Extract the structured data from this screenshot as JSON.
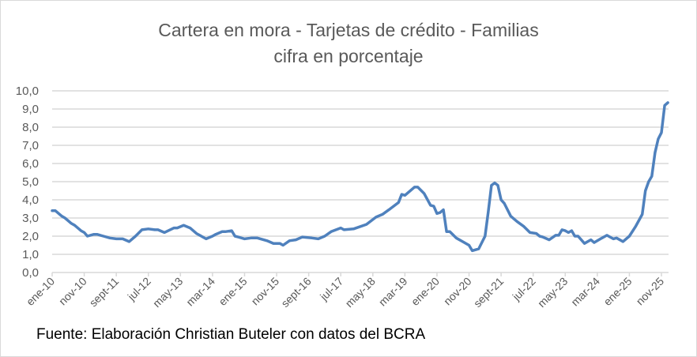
{
  "chart_data": {
    "type": "line",
    "title": "Cartera en mora - Tarjetas de crédito - Familias",
    "subtitle": "cifra en porcentaje",
    "source": "Fuente: Elaboración Christian Buteler con datos del BCRA",
    "ylim": [
      0,
      10
    ],
    "yticks": [
      "0,0",
      "1,0",
      "2,0",
      "3,0",
      "4,0",
      "5,0",
      "6,0",
      "7,0",
      "8,0",
      "9,0",
      "10,0"
    ],
    "xtick_dates": [
      "2010-01",
      "2010-11",
      "2011-09",
      "2012-07",
      "2013-05",
      "2014-03",
      "2015-01",
      "2015-11",
      "2016-09",
      "2017-07",
      "2018-05",
      "2019-03",
      "2020-01",
      "2020-11",
      "2021-09",
      "2022-07",
      "2023-05",
      "2024-03",
      "2025-01",
      "2025-11"
    ],
    "xticks": [
      "ene-10",
      "nov-10",
      "sept-11",
      "jul-12",
      "may-13",
      "mar-14",
      "ene-15",
      "nov-15",
      "sept-16",
      "jul-17",
      "may-18",
      "mar-19",
      "ene-20",
      "nov-20",
      "sept-21",
      "jul-22",
      "may-23",
      "mar-24",
      "ene-25",
      "nov-25"
    ],
    "grid": true,
    "legend": "none",
    "line_color": "#4f81bd",
    "series": [
      {
        "x": [
          "2010-01",
          "2010-02",
          "2010-04",
          "2010-05",
          "2010-07",
          "2010-08",
          "2010-10",
          "2010-11",
          "2010-12",
          "2011-02",
          "2011-03",
          "2011-05",
          "2011-07",
          "2011-09",
          "2011-11",
          "2012-01",
          "2012-03",
          "2012-05",
          "2012-07",
          "2012-09",
          "2012-10",
          "2012-12",
          "2013-03",
          "2013-04",
          "2013-06",
          "2013-08",
          "2013-10",
          "2014-01",
          "2014-03",
          "2014-04",
          "2014-06",
          "2014-07",
          "2014-09",
          "2014-10",
          "2014-11",
          "2015-01",
          "2015-03",
          "2015-05",
          "2015-08",
          "2015-10",
          "2015-12",
          "2016-01",
          "2016-03",
          "2016-05",
          "2016-07",
          "2016-10",
          "2016-12",
          "2017-02",
          "2017-04",
          "2017-07",
          "2017-08",
          "2017-11",
          "2018-03",
          "2018-06",
          "2018-08",
          "2018-10",
          "2019-01",
          "2019-02",
          "2019-03",
          "2019-06",
          "2019-07",
          "2019-09",
          "2019-11",
          "2019-12",
          "2020-01",
          "2020-02",
          "2020-03",
          "2020-04",
          "2020-05",
          "2020-07",
          "2020-09",
          "2020-11",
          "2020-12",
          "2021-02",
          "2021-04",
          "2021-05",
          "2021-06",
          "2021-07",
          "2021-08",
          "2021-09",
          "2021-10",
          "2021-12",
          "2022-02",
          "2022-04",
          "2022-06",
          "2022-08",
          "2022-09",
          "2022-10",
          "2022-12",
          "2023-02",
          "2023-03",
          "2023-04",
          "2023-05",
          "2023-06",
          "2023-07",
          "2023-08",
          "2023-09",
          "2023-11",
          "2024-01",
          "2024-02",
          "2024-04",
          "2024-06",
          "2024-08",
          "2024-09",
          "2024-11",
          "2025-01",
          "2025-03",
          "2025-05",
          "2025-06",
          "2025-07",
          "2025-08",
          "2025-09",
          "2025-10",
          "2025-11",
          "2025-12",
          "2026-01"
        ],
        "values": [
          3.4,
          3.4,
          3.1,
          3.0,
          2.7,
          2.6,
          2.3,
          2.2,
          2.0,
          2.1,
          2.1,
          2.0,
          1.9,
          1.85,
          1.85,
          1.7,
          2.0,
          2.35,
          2.4,
          2.35,
          2.35,
          2.2,
          2.45,
          2.45,
          2.6,
          2.45,
          2.15,
          1.85,
          2.0,
          2.1,
          2.25,
          2.25,
          2.3,
          2.0,
          1.95,
          1.85,
          1.9,
          1.9,
          1.75,
          1.6,
          1.6,
          1.5,
          1.75,
          1.8,
          1.95,
          1.9,
          1.85,
          2.0,
          2.25,
          2.45,
          2.35,
          2.4,
          2.65,
          3.05,
          3.2,
          3.45,
          3.85,
          4.3,
          4.25,
          4.7,
          4.7,
          4.35,
          3.7,
          3.65,
          3.25,
          3.3,
          3.45,
          2.25,
          2.25,
          1.9,
          1.7,
          1.5,
          1.2,
          1.3,
          2.0,
          3.35,
          4.8,
          4.93,
          4.8,
          4.0,
          3.8,
          3.1,
          2.8,
          2.55,
          2.2,
          2.15,
          2.0,
          1.95,
          1.8,
          2.05,
          2.05,
          2.35,
          2.3,
          2.2,
          2.3,
          2.0,
          2.0,
          1.6,
          1.8,
          1.65,
          1.85,
          2.05,
          1.85,
          1.9,
          1.7,
          2.0,
          2.55,
          3.2,
          4.5,
          5.0,
          5.3,
          6.6,
          7.35,
          7.7,
          9.2,
          9.35
        ]
      }
    ]
  }
}
